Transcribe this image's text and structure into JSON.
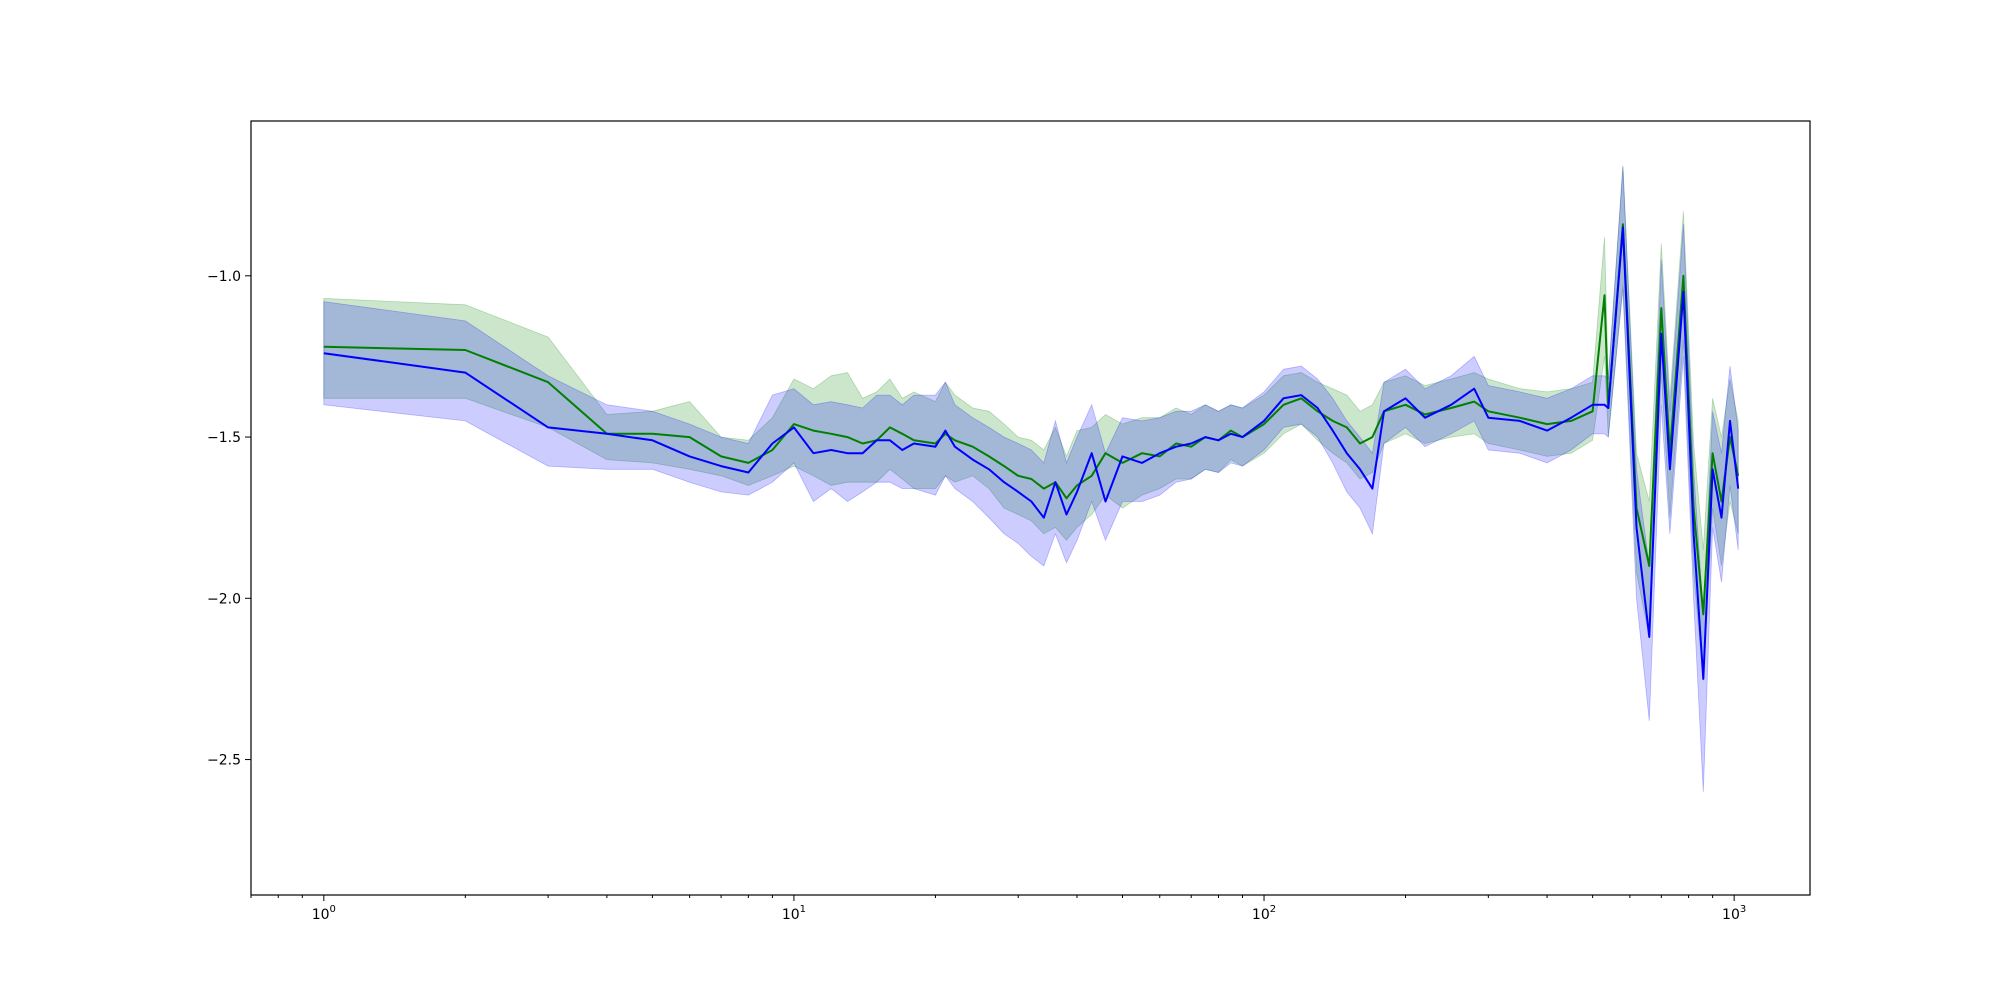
{
  "chart_data": {
    "type": "line",
    "title": "",
    "xlabel": "",
    "ylabel": "",
    "x_scale": "log",
    "xlim": [
      0.7,
      1450
    ],
    "ylim": [
      -2.92,
      -0.52
    ],
    "grid": false,
    "legend": "none",
    "x_ticks": [
      {
        "value": 1,
        "base": "10",
        "exp": "0"
      },
      {
        "value": 10,
        "base": "10",
        "exp": "1"
      },
      {
        "value": 100,
        "base": "10",
        "exp": "2"
      },
      {
        "value": 1000,
        "base": "10",
        "exp": "3"
      }
    ],
    "y_ticks": [
      {
        "value": -1.0,
        "label": "−1.0"
      },
      {
        "value": -1.5,
        "label": "−1.5"
      },
      {
        "value": -2.0,
        "label": "−2.0"
      },
      {
        "value": -2.5,
        "label": "−2.5"
      }
    ],
    "series": [
      {
        "color": "#008000",
        "band_color": "#008000",
        "band_opacity": 0.2,
        "points": [
          [
            1,
            -1.22,
            -1.07,
            -1.38
          ],
          [
            2,
            -1.23,
            -1.09,
            -1.38
          ],
          [
            3,
            -1.33,
            -1.19,
            -1.47
          ],
          [
            4,
            -1.49,
            -1.43,
            -1.57
          ],
          [
            5,
            -1.49,
            -1.42,
            -1.58
          ],
          [
            6,
            -1.5,
            -1.39,
            -1.6
          ],
          [
            7,
            -1.56,
            -1.5,
            -1.62
          ],
          [
            8,
            -1.58,
            -1.51,
            -1.65
          ],
          [
            9,
            -1.54,
            -1.44,
            -1.62
          ],
          [
            10,
            -1.46,
            -1.32,
            -1.59
          ],
          [
            11,
            -1.48,
            -1.35,
            -1.62
          ],
          [
            12,
            -1.49,
            -1.31,
            -1.65
          ],
          [
            13,
            -1.5,
            -1.3,
            -1.64
          ],
          [
            14,
            -1.52,
            -1.38,
            -1.64
          ],
          [
            15,
            -1.51,
            -1.36,
            -1.64
          ],
          [
            16,
            -1.47,
            -1.32,
            -1.6
          ],
          [
            17,
            -1.49,
            -1.38,
            -1.63
          ],
          [
            18,
            -1.51,
            -1.36,
            -1.66
          ],
          [
            20,
            -1.52,
            -1.39,
            -1.66
          ],
          [
            21,
            -1.49,
            -1.33,
            -1.62
          ],
          [
            22,
            -1.51,
            -1.37,
            -1.64
          ],
          [
            24,
            -1.53,
            -1.41,
            -1.62
          ],
          [
            26,
            -1.56,
            -1.42,
            -1.66
          ],
          [
            28,
            -1.59,
            -1.46,
            -1.72
          ],
          [
            30,
            -1.62,
            -1.5,
            -1.74
          ],
          [
            32,
            -1.63,
            -1.51,
            -1.76
          ],
          [
            34,
            -1.66,
            -1.54,
            -1.8
          ],
          [
            36,
            -1.64,
            -1.47,
            -1.78
          ],
          [
            38,
            -1.69,
            -1.56,
            -1.82
          ],
          [
            40,
            -1.65,
            -1.48,
            -1.78
          ],
          [
            43,
            -1.62,
            -1.47,
            -1.74
          ],
          [
            46,
            -1.55,
            -1.43,
            -1.68
          ],
          [
            50,
            -1.58,
            -1.46,
            -1.72
          ],
          [
            55,
            -1.55,
            -1.44,
            -1.68
          ],
          [
            60,
            -1.56,
            -1.44,
            -1.66
          ],
          [
            65,
            -1.52,
            -1.41,
            -1.63
          ],
          [
            70,
            -1.53,
            -1.43,
            -1.63
          ],
          [
            75,
            -1.5,
            -1.4,
            -1.6
          ],
          [
            80,
            -1.51,
            -1.42,
            -1.61
          ],
          [
            85,
            -1.48,
            -1.4,
            -1.57
          ],
          [
            90,
            -1.5,
            -1.41,
            -1.59
          ],
          [
            100,
            -1.46,
            -1.37,
            -1.55
          ],
          [
            110,
            -1.4,
            -1.31,
            -1.49
          ],
          [
            120,
            -1.38,
            -1.3,
            -1.46
          ],
          [
            130,
            -1.42,
            -1.33,
            -1.51
          ],
          [
            140,
            -1.45,
            -1.35,
            -1.55
          ],
          [
            150,
            -1.47,
            -1.37,
            -1.58
          ],
          [
            160,
            -1.52,
            -1.42,
            -1.63
          ],
          [
            170,
            -1.5,
            -1.4,
            -1.61
          ],
          [
            180,
            -1.42,
            -1.33,
            -1.52
          ],
          [
            200,
            -1.4,
            -1.31,
            -1.49
          ],
          [
            220,
            -1.43,
            -1.34,
            -1.52
          ],
          [
            250,
            -1.41,
            -1.32,
            -1.5
          ],
          [
            280,
            -1.39,
            -1.3,
            -1.49
          ],
          [
            300,
            -1.42,
            -1.32,
            -1.52
          ],
          [
            350,
            -1.44,
            -1.35,
            -1.54
          ],
          [
            400,
            -1.46,
            -1.36,
            -1.56
          ],
          [
            450,
            -1.45,
            -1.35,
            -1.55
          ],
          [
            500,
            -1.42,
            -1.33,
            -1.51
          ],
          [
            530,
            -1.06,
            -0.88,
            -1.25
          ],
          [
            540,
            -1.41,
            -1.32,
            -1.5
          ],
          [
            580,
            -0.84,
            -0.66,
            -1.03
          ],
          [
            620,
            -1.72,
            -1.55,
            -1.92
          ],
          [
            660,
            -1.9,
            -1.7,
            -2.12
          ],
          [
            700,
            -1.1,
            -0.9,
            -1.3
          ],
          [
            730,
            -1.55,
            -1.38,
            -1.75
          ],
          [
            780,
            -1.0,
            -0.8,
            -1.2
          ],
          [
            820,
            -1.72,
            -1.52,
            -1.92
          ],
          [
            860,
            -2.05,
            -1.85,
            -2.25
          ],
          [
            900,
            -1.55,
            -1.38,
            -1.72
          ],
          [
            940,
            -1.7,
            -1.5,
            -1.9
          ],
          [
            980,
            -1.5,
            -1.32,
            -1.7
          ],
          [
            1020,
            -1.62,
            -1.45,
            -1.8
          ]
        ]
      },
      {
        "color": "#0000ff",
        "band_color": "#0000ff",
        "band_opacity": 0.2,
        "points": [
          [
            1,
            -1.24,
            -1.08,
            -1.4
          ],
          [
            2,
            -1.3,
            -1.14,
            -1.45
          ],
          [
            3,
            -1.47,
            -1.31,
            -1.59
          ],
          [
            4,
            -1.49,
            -1.4,
            -1.6
          ],
          [
            5,
            -1.51,
            -1.42,
            -1.6
          ],
          [
            6,
            -1.56,
            -1.46,
            -1.64
          ],
          [
            7,
            -1.59,
            -1.5,
            -1.67
          ],
          [
            8,
            -1.61,
            -1.52,
            -1.68
          ],
          [
            9,
            -1.52,
            -1.37,
            -1.64
          ],
          [
            10,
            -1.47,
            -1.35,
            -1.58
          ],
          [
            11,
            -1.55,
            -1.4,
            -1.7
          ],
          [
            12,
            -1.54,
            -1.39,
            -1.66
          ],
          [
            13,
            -1.55,
            -1.4,
            -1.7
          ],
          [
            14,
            -1.55,
            -1.41,
            -1.67
          ],
          [
            15,
            -1.51,
            -1.37,
            -1.64
          ],
          [
            16,
            -1.51,
            -1.37,
            -1.64
          ],
          [
            17,
            -1.54,
            -1.4,
            -1.66
          ],
          [
            18,
            -1.52,
            -1.37,
            -1.66
          ],
          [
            20,
            -1.53,
            -1.37,
            -1.68
          ],
          [
            21,
            -1.48,
            -1.33,
            -1.62
          ],
          [
            22,
            -1.53,
            -1.4,
            -1.66
          ],
          [
            24,
            -1.57,
            -1.44,
            -1.7
          ],
          [
            26,
            -1.6,
            -1.47,
            -1.75
          ],
          [
            28,
            -1.64,
            -1.5,
            -1.8
          ],
          [
            30,
            -1.67,
            -1.52,
            -1.83
          ],
          [
            32,
            -1.7,
            -1.54,
            -1.87
          ],
          [
            34,
            -1.75,
            -1.58,
            -1.9
          ],
          [
            36,
            -1.64,
            -1.45,
            -1.8
          ],
          [
            38,
            -1.74,
            -1.58,
            -1.89
          ],
          [
            40,
            -1.67,
            -1.5,
            -1.82
          ],
          [
            43,
            -1.55,
            -1.4,
            -1.7
          ],
          [
            46,
            -1.7,
            -1.55,
            -1.82
          ],
          [
            50,
            -1.56,
            -1.44,
            -1.7
          ],
          [
            55,
            -1.58,
            -1.45,
            -1.7
          ],
          [
            60,
            -1.55,
            -1.44,
            -1.68
          ],
          [
            65,
            -1.53,
            -1.42,
            -1.64
          ],
          [
            70,
            -1.52,
            -1.42,
            -1.63
          ],
          [
            75,
            -1.5,
            -1.4,
            -1.6
          ],
          [
            80,
            -1.51,
            -1.42,
            -1.61
          ],
          [
            85,
            -1.49,
            -1.4,
            -1.58
          ],
          [
            90,
            -1.5,
            -1.41,
            -1.59
          ],
          [
            100,
            -1.45,
            -1.36,
            -1.54
          ],
          [
            110,
            -1.38,
            -1.29,
            -1.47
          ],
          [
            120,
            -1.37,
            -1.28,
            -1.46
          ],
          [
            130,
            -1.41,
            -1.32,
            -1.5
          ],
          [
            140,
            -1.48,
            -1.38,
            -1.58
          ],
          [
            150,
            -1.55,
            -1.45,
            -1.67
          ],
          [
            160,
            -1.6,
            -1.5,
            -1.72
          ],
          [
            170,
            -1.66,
            -1.55,
            -1.8
          ],
          [
            180,
            -1.42,
            -1.33,
            -1.52
          ],
          [
            200,
            -1.38,
            -1.29,
            -1.47
          ],
          [
            220,
            -1.44,
            -1.35,
            -1.53
          ],
          [
            250,
            -1.4,
            -1.31,
            -1.49
          ],
          [
            280,
            -1.35,
            -1.25,
            -1.45
          ],
          [
            300,
            -1.44,
            -1.34,
            -1.54
          ],
          [
            350,
            -1.45,
            -1.36,
            -1.55
          ],
          [
            400,
            -1.48,
            -1.38,
            -1.58
          ],
          [
            450,
            -1.44,
            -1.35,
            -1.54
          ],
          [
            500,
            -1.4,
            -1.31,
            -1.49
          ],
          [
            530,
            -1.4,
            -1.31,
            -1.49
          ],
          [
            540,
            -1.41,
            -1.32,
            -1.5
          ],
          [
            580,
            -0.85,
            -0.66,
            -1.04
          ],
          [
            620,
            -1.78,
            -1.6,
            -2.0
          ],
          [
            660,
            -2.12,
            -1.9,
            -2.38
          ],
          [
            700,
            -1.18,
            -0.95,
            -1.4
          ],
          [
            730,
            -1.6,
            -1.42,
            -1.8
          ],
          [
            780,
            -1.05,
            -0.84,
            -1.25
          ],
          [
            820,
            -1.8,
            -1.6,
            -2.0
          ],
          [
            860,
            -2.25,
            -2.05,
            -2.6
          ],
          [
            900,
            -1.6,
            -1.42,
            -1.78
          ],
          [
            940,
            -1.75,
            -1.55,
            -1.95
          ],
          [
            980,
            -1.45,
            -1.28,
            -1.65
          ],
          [
            1020,
            -1.66,
            -1.48,
            -1.85
          ]
        ]
      }
    ]
  }
}
